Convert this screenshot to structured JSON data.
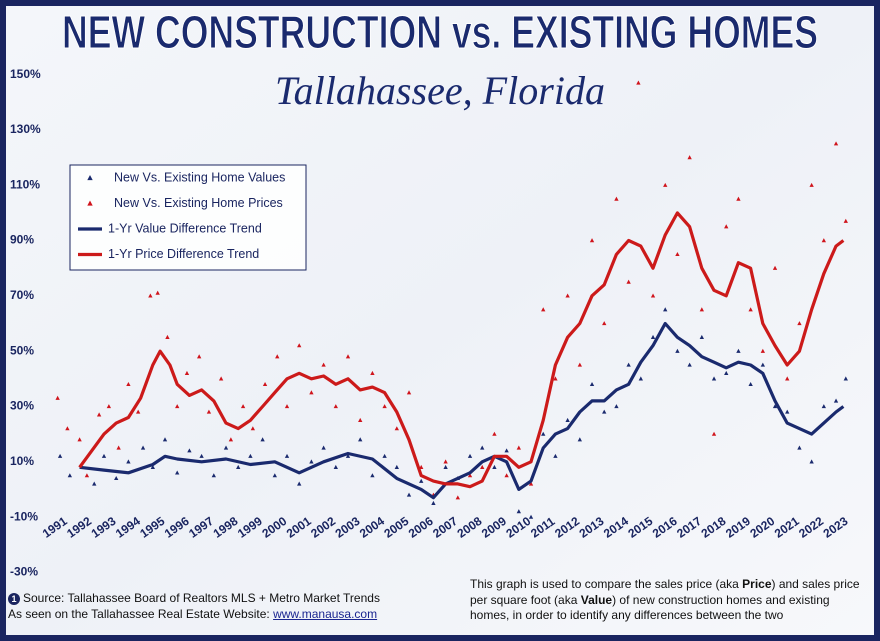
{
  "chart_data": {
    "type": "line",
    "title": "NEW CONSTRUCTION vs. EXISTING HOMES",
    "subtitle": "Tallahassee, Florida",
    "xlim": [
      1990.5,
      2023.9
    ],
    "ylim": [
      -36,
      156
    ],
    "xticks": [
      1991,
      1992,
      1993,
      1994,
      1995,
      1996,
      1997,
      1998,
      1999,
      2000,
      2001,
      2002,
      2003,
      2004,
      2005,
      2006,
      2007,
      2008,
      2009,
      2010,
      2011,
      2012,
      2013,
      2014,
      2015,
      2016,
      2017,
      2018,
      2019,
      2020,
      2021,
      2022,
      2023
    ],
    "yticks": [
      {
        "value": -30,
        "label": "-30%"
      },
      {
        "value": -10,
        "label": "-10%"
      },
      {
        "value": 10,
        "label": "10%"
      },
      {
        "value": 30,
        "label": "30%"
      },
      {
        "value": 50,
        "label": "50%"
      },
      {
        "value": 70,
        "label": "70%"
      },
      {
        "value": 90,
        "label": "90%"
      },
      {
        "value": 110,
        "label": "110%"
      },
      {
        "value": 130,
        "label": "130%"
      },
      {
        "value": 150,
        "label": "150%"
      }
    ],
    "legend": "upper left",
    "series": [
      {
        "name": "New Vs. Existing Home Values",
        "style": "marker",
        "color": "#1a2a6e",
        "x": [
          1991.2,
          1991.6,
          1992.1,
          1992.6,
          1993.0,
          1993.5,
          1994.0,
          1994.6,
          1995.0,
          1995.5,
          1996.0,
          1996.5,
          1997.0,
          1997.5,
          1998.0,
          1998.5,
          1999.0,
          1999.5,
          2000.0,
          2000.5,
          2001.0,
          2001.5,
          2002.0,
          2002.5,
          2003.0,
          2003.5,
          2004.0,
          2004.5,
          2005.0,
          2005.5,
          2006.0,
          2006.5,
          2007.0,
          2007.5,
          2008.0,
          2008.5,
          2009.0,
          2009.5,
          2010.0,
          2010.5,
          2011.0,
          2011.5,
          2012.0,
          2012.5,
          2013.0,
          2013.5,
          2014.0,
          2014.5,
          2015.0,
          2015.5,
          2016.0,
          2016.5,
          2017.0,
          2017.5,
          2018.0,
          2018.5,
          2019.0,
          2019.5,
          2020.0,
          2020.5,
          2021.0,
          2021.5,
          2022.0,
          2022.5,
          2023.0,
          2023.4
        ],
        "values": [
          12,
          5,
          8,
          2,
          12,
          4,
          10,
          15,
          8,
          18,
          6,
          14,
          12,
          5,
          15,
          8,
          12,
          18,
          5,
          12,
          2,
          10,
          15,
          8,
          12,
          18,
          5,
          12,
          8,
          -2,
          3,
          -5,
          8,
          4,
          12,
          15,
          8,
          14,
          -8,
          -10,
          20,
          12,
          25,
          18,
          38,
          28,
          30,
          45,
          40,
          55,
          65,
          50,
          45,
          55,
          40,
          42,
          50,
          38,
          45,
          30,
          28,
          15,
          10,
          30,
          32,
          40
        ]
      },
      {
        "name": "New Vs. Existing Home Prices",
        "style": "marker",
        "color": "#d0141c",
        "x": [
          1991.1,
          1991.5,
          1992.0,
          1992.3,
          1992.8,
          1993.2,
          1993.6,
          1994.0,
          1994.4,
          1994.9,
          1995.2,
          1995.6,
          1996.0,
          1996.4,
          1996.9,
          1997.3,
          1997.8,
          1998.2,
          1998.7,
          1999.1,
          1999.6,
          2000.1,
          2000.5,
          2001.0,
          2001.5,
          2002.0,
          2002.5,
          2003.0,
          2003.5,
          2004.0,
          2004.5,
          2005.0,
          2005.5,
          2006.0,
          2006.5,
          2007.0,
          2007.5,
          2008.0,
          2008.5,
          2009.0,
          2009.5,
          2010.0,
          2010.5,
          2011.0,
          2011.5,
          2012.0,
          2012.5,
          2013.0,
          2013.5,
          2014.0,
          2014.5,
          2014.9,
          2015.5,
          2016.0,
          2016.5,
          2017.0,
          2017.5,
          2018.0,
          2018.5,
          2019.0,
          2019.5,
          2020.0,
          2020.5,
          2021.0,
          2021.5,
          2022.0,
          2022.5,
          2023.0,
          2023.4
        ],
        "values": [
          33,
          22,
          18,
          5,
          27,
          30,
          15,
          38,
          28,
          70,
          71,
          55,
          30,
          42,
          48,
          28,
          40,
          18,
          30,
          22,
          38,
          48,
          30,
          52,
          35,
          45,
          30,
          48,
          25,
          42,
          30,
          22,
          35,
          8,
          -2,
          10,
          -3,
          5,
          8,
          20,
          5,
          15,
          2,
          65,
          40,
          70,
          45,
          90,
          60,
          105,
          75,
          147,
          70,
          110,
          85,
          120,
          65,
          20,
          95,
          105,
          65,
          50,
          80,
          40,
          60,
          110,
          90,
          125,
          97
        ]
      },
      {
        "name": "1-Yr Value Difference Trend",
        "style": "line",
        "color": "#1a2a6e",
        "x": [
          1992,
          1993,
          1994,
          1995,
          1995.5,
          1996,
          1997,
          1998,
          1999,
          2000,
          2001,
          2002,
          2003,
          2004,
          2005,
          2006,
          2006.5,
          2007,
          2008,
          2008.5,
          2009,
          2009.5,
          2010,
          2010.5,
          2011,
          2011.5,
          2012,
          2012.5,
          2013,
          2013.5,
          2014,
          2014.5,
          2015,
          2015.5,
          2016,
          2016.5,
          2017,
          2017.5,
          2018,
          2018.5,
          2019,
          2019.5,
          2020,
          2020.5,
          2021,
          2021.5,
          2022,
          2022.5,
          2023,
          2023.3
        ],
        "values": [
          8,
          7,
          6,
          9,
          12,
          11,
          10,
          11,
          9,
          10,
          6,
          10,
          13,
          11,
          4,
          0,
          -3,
          2,
          6,
          10,
          12,
          10,
          0,
          3,
          15,
          20,
          22,
          28,
          32,
          32,
          36,
          38,
          46,
          52,
          60,
          55,
          52,
          48,
          46,
          44,
          46,
          45,
          42,
          32,
          24,
          22,
          20,
          24,
          28,
          30
        ]
      },
      {
        "name": "1-Yr Price Difference Trend",
        "style": "line",
        "color": "#cc1a1a",
        "x": [
          1992,
          1992.5,
          1993,
          1993.5,
          1994,
          1994.5,
          1995,
          1995.3,
          1995.7,
          1996,
          1996.5,
          1997,
          1997.5,
          1998,
          1998.5,
          1999,
          1999.5,
          2000,
          2000.5,
          2001,
          2001.5,
          2002,
          2002.5,
          2003,
          2003.5,
          2004,
          2004.5,
          2005,
          2005.5,
          2006,
          2006.5,
          2007,
          2007.5,
          2008,
          2008.5,
          2009,
          2009.5,
          2010,
          2010.5,
          2011,
          2011.5,
          2012,
          2012.5,
          2013,
          2013.5,
          2014,
          2014.5,
          2015,
          2015.5,
          2016,
          2016.5,
          2017,
          2017.5,
          2018,
          2018.5,
          2019,
          2019.5,
          2020,
          2020.5,
          2021,
          2021.5,
          2022,
          2022.5,
          2023,
          2023.3
        ],
        "values": [
          8,
          14,
          20,
          24,
          26,
          33,
          45,
          50,
          45,
          38,
          34,
          36,
          32,
          24,
          22,
          25,
          30,
          35,
          40,
          42,
          40,
          41,
          38,
          40,
          36,
          37,
          35,
          28,
          18,
          5,
          3,
          2,
          2,
          1,
          3,
          12,
          12,
          8,
          10,
          25,
          45,
          55,
          60,
          70,
          74,
          85,
          90,
          88,
          80,
          92,
          100,
          95,
          80,
          72,
          70,
          82,
          80,
          60,
          52,
          45,
          50,
          65,
          78,
          88,
          90
        ]
      }
    ],
    "source": "Source: Tallahassee Board of Realtors MLS + Metro Market Trends",
    "seen_on": "As seen on the Tallahassee Real Estate Website:",
    "link": "www.manausa.com",
    "note": [
      "This graph is used to compare the sales price (aka ",
      "Price",
      ") and sales price per square foot (aka ",
      "Value",
      ") of new construction homes and existing homes, in order to identify any differences between the two"
    ]
  }
}
